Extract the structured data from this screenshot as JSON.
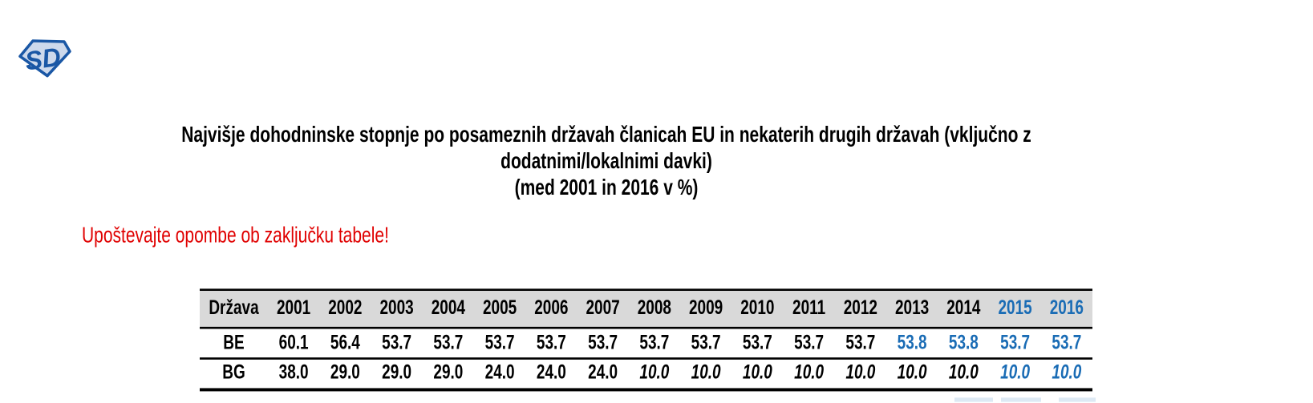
{
  "logo": {
    "monogram": "SD",
    "outline_color": "#1a57a5",
    "fill_color": "#cdd9ec"
  },
  "title": {
    "lines": [
      "Najvišje dohodninske stopnje po posameznih državah članicah EU in nekaterih drugih državah (vključno z",
      "dodatnimi/lokalnimi davki)",
      "(med 2001 in 2016 v %)"
    ]
  },
  "notice": {
    "text": "Upoštevajte opombe ob zaključku tabele!",
    "color": "#e00000"
  },
  "table": {
    "country_header": "Država",
    "years": [
      "2001",
      "2002",
      "2003",
      "2004",
      "2005",
      "2006",
      "2007",
      "2008",
      "2009",
      "2010",
      "2011",
      "2012",
      "2013",
      "2014",
      "2015",
      "2016"
    ],
    "highlight_years": [
      "2015",
      "2016"
    ],
    "colors": {
      "accent_blue": "#1a6cb5",
      "header_background": "#d9d9d9",
      "text": "#000000"
    },
    "rows": [
      {
        "country": "BE",
        "values": [
          {
            "v": "60.1"
          },
          {
            "v": "56.4"
          },
          {
            "v": "53.7"
          },
          {
            "v": "53.7"
          },
          {
            "v": "53.7"
          },
          {
            "v": "53.7"
          },
          {
            "v": "53.7"
          },
          {
            "v": "53.7"
          },
          {
            "v": "53.7"
          },
          {
            "v": "53.7"
          },
          {
            "v": "53.7"
          },
          {
            "v": "53.7"
          },
          {
            "v": "53.8",
            "blue": true
          },
          {
            "v": "53.8",
            "blue": true
          },
          {
            "v": "53.7",
            "blue": true
          },
          {
            "v": "53.7",
            "blue": true
          }
        ]
      },
      {
        "country": "BG",
        "values": [
          {
            "v": "38.0"
          },
          {
            "v": "29.0"
          },
          {
            "v": "29.0"
          },
          {
            "v": "29.0"
          },
          {
            "v": "24.0"
          },
          {
            "v": "24.0"
          },
          {
            "v": "24.0"
          },
          {
            "v": "10.0",
            "italic": true
          },
          {
            "v": "10.0",
            "italic": true
          },
          {
            "v": "10.0",
            "italic": true
          },
          {
            "v": "10.0",
            "italic": true
          },
          {
            "v": "10.0",
            "italic": true
          },
          {
            "v": "10.0",
            "italic": true
          },
          {
            "v": "10.0",
            "italic": true
          },
          {
            "v": "10.0",
            "italic": true,
            "blue": true
          },
          {
            "v": "10.0",
            "italic": true,
            "blue": true
          }
        ]
      }
    ]
  }
}
